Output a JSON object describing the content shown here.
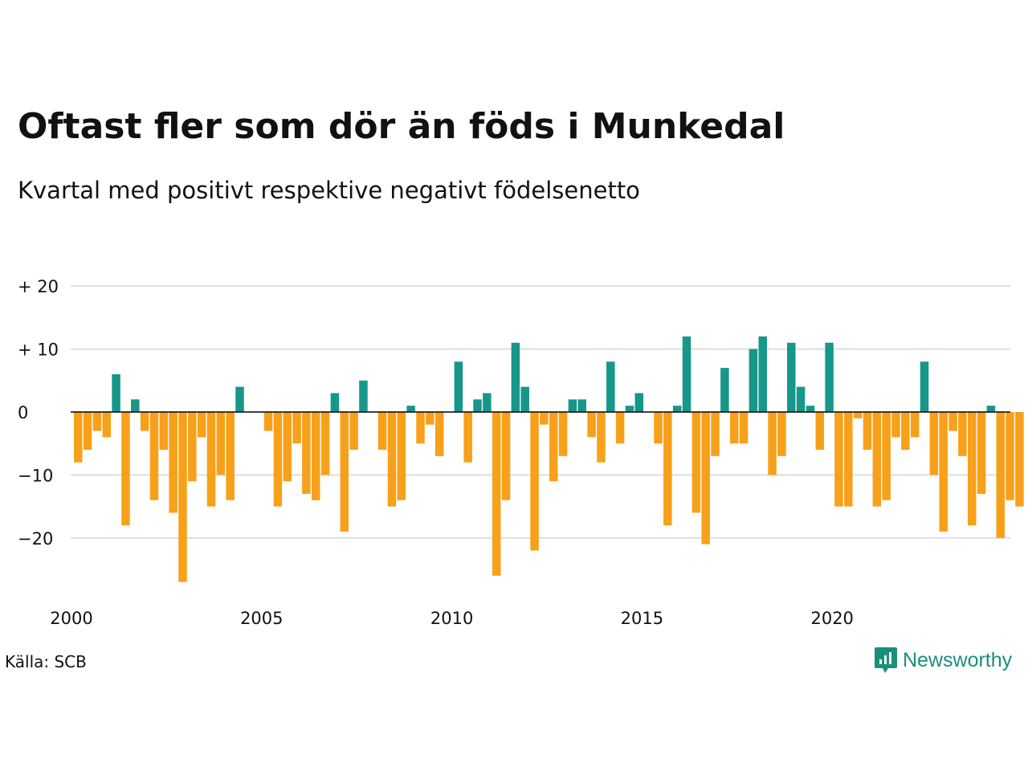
{
  "title": "Oftast fler som dör än föds i Munkedal",
  "subtitle": "Kvartal med positivt respektive negativt födelsenetto",
  "source": "Källa: SCB",
  "brand": "Newsworthy",
  "colors": {
    "positive": "#16978a",
    "negative": "#f7a11a",
    "grid": "#dddddd",
    "zero": "#000000",
    "brand": "#1a8f7d"
  },
  "chart_data": {
    "type": "bar",
    "x": [
      "2000Q1",
      "2000Q2",
      "2000Q3",
      "2000Q4",
      "2001Q1",
      "2001Q2",
      "2001Q3",
      "2001Q4",
      "2002Q1",
      "2002Q2",
      "2002Q3",
      "2002Q4",
      "2003Q1",
      "2003Q2",
      "2003Q3",
      "2003Q4",
      "2004Q1",
      "2004Q2",
      "2004Q3",
      "2004Q4",
      "2005Q1",
      "2005Q2",
      "2005Q3",
      "2005Q4",
      "2006Q1",
      "2006Q2",
      "2006Q3",
      "2006Q4",
      "2007Q1",
      "2007Q2",
      "2007Q3",
      "2007Q4",
      "2008Q1",
      "2008Q2",
      "2008Q3",
      "2008Q4",
      "2009Q1",
      "2009Q2",
      "2009Q3",
      "2009Q4",
      "2010Q1",
      "2010Q2",
      "2010Q3",
      "2010Q4",
      "2011Q1",
      "2011Q2",
      "2011Q3",
      "2011Q4",
      "2012Q1",
      "2012Q2",
      "2012Q3",
      "2012Q4",
      "2013Q1",
      "2013Q2",
      "2013Q3",
      "2013Q4",
      "2014Q1",
      "2014Q2",
      "2014Q3",
      "2014Q4",
      "2015Q1",
      "2015Q2",
      "2015Q3",
      "2015Q4",
      "2016Q1",
      "2016Q2",
      "2016Q3",
      "2016Q4",
      "2017Q1",
      "2017Q2",
      "2017Q3",
      "2017Q4",
      "2018Q1",
      "2018Q2",
      "2018Q3",
      "2018Q4",
      "2019Q1",
      "2019Q2",
      "2019Q3",
      "2019Q4",
      "2020Q1",
      "2020Q2",
      "2020Q3",
      "2020Q4",
      "2021Q1",
      "2021Q2",
      "2021Q3",
      "2021Q4",
      "2022Q1",
      "2022Q2",
      "2022Q3",
      "2022Q4",
      "2023Q1",
      "2023Q2",
      "2023Q3",
      "2023Q4",
      "2024Q1",
      "2024Q2",
      "2024Q3",
      "2024Q4"
    ],
    "values": [
      -8,
      -6,
      -3,
      -4,
      6,
      -18,
      2,
      -3,
      -14,
      -6,
      -16,
      -27,
      -11,
      -4,
      -15,
      -10,
      -14,
      4,
      0,
      0,
      -3,
      -15,
      -11,
      -5,
      -13,
      -14,
      -10,
      3,
      -19,
      -6,
      5,
      0,
      -6,
      -15,
      -14,
      1,
      -5,
      -2,
      -7,
      0,
      8,
      -8,
      2,
      3,
      -26,
      -14,
      11,
      4,
      -22,
      -2,
      -11,
      -7,
      2,
      2,
      -4,
      -8,
      8,
      -5,
      1,
      3,
      0,
      -5,
      -18,
      1,
      12,
      -16,
      -21,
      -7,
      7,
      -5,
      -5,
      10,
      12,
      -10,
      -7,
      11,
      4,
      1,
      -6,
      11,
      -15,
      -15,
      -1,
      -6,
      -15,
      -14,
      -4,
      -6,
      -4,
      8,
      -10,
      -19,
      -3,
      -7,
      -18,
      -13,
      1,
      -20,
      -14,
      -15
    ],
    "xticks": [
      "2000",
      "2005",
      "2010",
      "2015",
      "2020"
    ],
    "yticks": [
      "+ 20",
      "+ 10",
      "0",
      "−10",
      "−20"
    ],
    "ytick_values": [
      20,
      10,
      0,
      -10,
      -20
    ],
    "ylim": [
      -27,
      20
    ],
    "xlabel": "",
    "ylabel": "",
    "grid": true
  }
}
